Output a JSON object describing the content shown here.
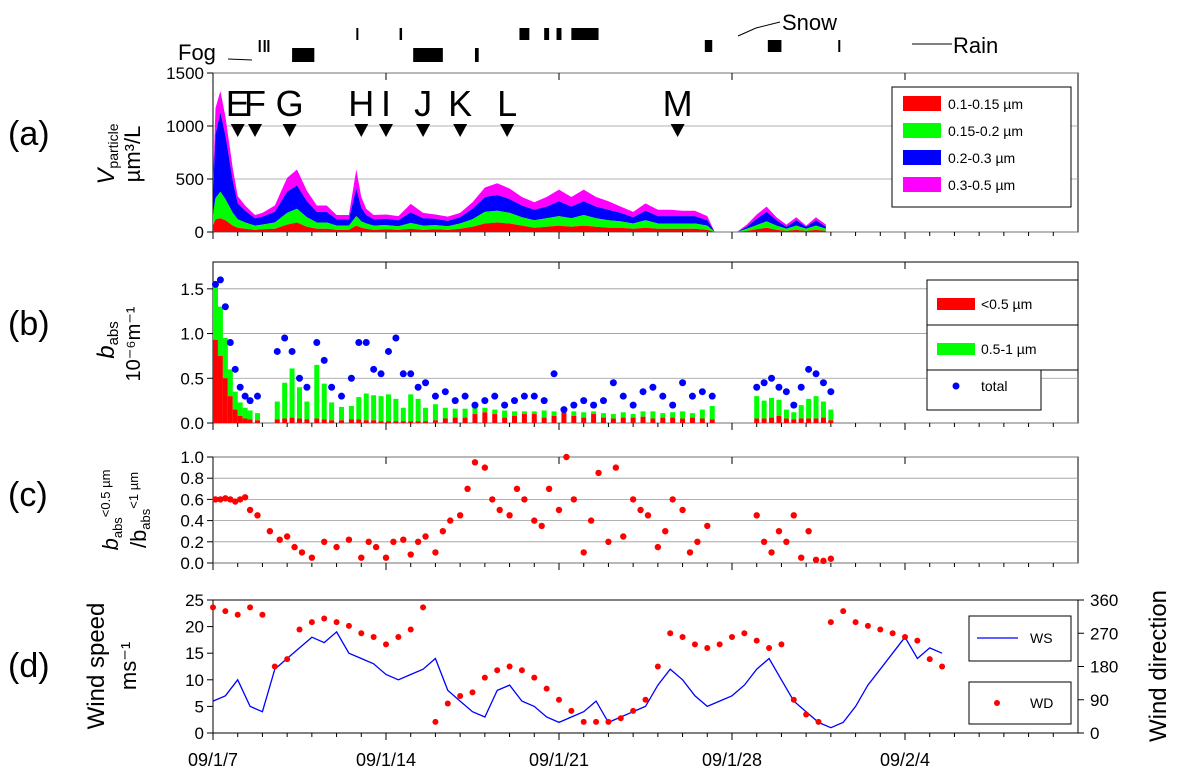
{
  "weather": {
    "fog": "Fog",
    "snow": "Snow",
    "rain": "Rain",
    "events": [
      {
        "type": "fog",
        "start": 8.85,
        "end": 8.9
      },
      {
        "type": "fog",
        "start": 9.05,
        "end": 9.1
      },
      {
        "type": "fog",
        "start": 9.2,
        "end": 9.25
      },
      {
        "type": "fog",
        "start": 10.2,
        "end": 11.1
      },
      {
        "type": "fog",
        "start": 12.8,
        "end": 12.85
      },
      {
        "type": "fog",
        "start": 14.55,
        "end": 14.65
      },
      {
        "type": "fog",
        "start": 15.1,
        "end": 16.3
      },
      {
        "type": "fog",
        "start": 17.6,
        "end": 17.75
      },
      {
        "type": "fog",
        "start": 19.4,
        "end": 19.8
      },
      {
        "type": "fog",
        "start": 20.4,
        "end": 20.6
      },
      {
        "type": "fog",
        "start": 20.9,
        "end": 21.1
      },
      {
        "type": "fog",
        "start": 21.5,
        "end": 22.6
      },
      {
        "type": "snow",
        "start": 26.9,
        "end": 27.2
      },
      {
        "type": "snow",
        "start": 29.45,
        "end": 30.0
      },
      {
        "type": "rain",
        "start": 32.3,
        "end": 32.35
      }
    ]
  },
  "x_axis": {
    "ticks": [
      {
        "value": 7,
        "label": "09/1/7"
      },
      {
        "value": 14,
        "label": "09/1/14"
      },
      {
        "value": 21,
        "label": "09/1/21"
      },
      {
        "value": 28,
        "label": "09/1/28"
      },
      {
        "value": 35,
        "label": "09/2/4"
      }
    ]
  },
  "chart_data": [
    {
      "panel": "(a)",
      "type": "area",
      "ylabel": "Vparticle µm³/L",
      "ylim": [
        0,
        1500
      ],
      "yticks": [
        0,
        500,
        1000,
        1500
      ],
      "xlim": [
        7,
        42
      ],
      "events": [
        {
          "label": "E",
          "x": 8.0
        },
        {
          "label": "F",
          "x": 8.7
        },
        {
          "label": "G",
          "x": 10.1
        },
        {
          "label": "H",
          "x": 13.0
        },
        {
          "label": "I",
          "x": 14.0
        },
        {
          "label": "J",
          "x": 15.5
        },
        {
          "label": "K",
          "x": 17.0
        },
        {
          "label": "L",
          "x": 18.9
        },
        {
          "label": "M",
          "x": 25.8
        }
      ],
      "legend": [
        "0.1-0.15 µm",
        "0.15-0.2 µm",
        "0.2-0.3 µm",
        "0.3-0.5 µm"
      ],
      "colors": [
        "#ff0000",
        "#00ff00",
        "#0000ff",
        "#ff00ff"
      ],
      "x": [
        7.0,
        7.1,
        7.3,
        7.5,
        7.8,
        8.0,
        8.3,
        8.7,
        9.0,
        9.5,
        10.0,
        10.4,
        10.8,
        11.2,
        11.6,
        12.0,
        12.5,
        12.8,
        13.0,
        13.2,
        13.5,
        14.0,
        14.5,
        15.0,
        15.5,
        16.0,
        16.5,
        17.0,
        17.5,
        18.0,
        18.5,
        19.0,
        19.5,
        20.0,
        20.5,
        21.0,
        21.5,
        22.0,
        22.5,
        23.0,
        23.5,
        24.0,
        24.5,
        25.0,
        25.5,
        26.0,
        26.5,
        27.0,
        27.3,
        27.6,
        28.2,
        28.6,
        29.0,
        29.4,
        29.8,
        30.2,
        30.6,
        31.0,
        31.4,
        31.8
      ],
      "series": [
        {
          "name": "0.1-0.15 µm",
          "values": [
            60,
            120,
            130,
            110,
            60,
            40,
            30,
            20,
            25,
            30,
            70,
            90,
            50,
            30,
            30,
            20,
            20,
            60,
            40,
            30,
            20,
            25,
            20,
            30,
            20,
            25,
            20,
            30,
            50,
            80,
            90,
            80,
            60,
            40,
            50,
            60,
            50,
            60,
            50,
            40,
            40,
            30,
            40,
            30,
            30,
            30,
            30,
            20,
            0,
            0,
            0,
            10,
            25,
            40,
            20,
            10,
            20,
            10,
            20,
            10
          ]
        },
        {
          "name": "0.15-0.2 µm",
          "values": [
            100,
            200,
            250,
            200,
            120,
            80,
            60,
            40,
            45,
            60,
            110,
            130,
            90,
            60,
            60,
            40,
            40,
            90,
            60,
            50,
            40,
            40,
            35,
            55,
            40,
            40,
            35,
            50,
            70,
            110,
            110,
            100,
            80,
            70,
            80,
            90,
            80,
            100,
            80,
            70,
            60,
            50,
            70,
            50,
            50,
            50,
            50,
            40,
            0,
            0,
            0,
            20,
            40,
            60,
            40,
            20,
            40,
            20,
            40,
            20
          ]
        },
        {
          "name": "0.2-0.3 µm",
          "values": [
            200,
            600,
            750,
            600,
            300,
            150,
            110,
            70,
            75,
            100,
            200,
            220,
            150,
            100,
            100,
            60,
            60,
            260,
            130,
            80,
            60,
            60,
            55,
            100,
            70,
            60,
            50,
            60,
            100,
            140,
            150,
            130,
            110,
            100,
            110,
            140,
            110,
            130,
            110,
            100,
            80,
            60,
            90,
            70,
            70,
            70,
            70,
            50,
            0,
            0,
            0,
            20,
            60,
            90,
            50,
            20,
            50,
            20,
            50,
            20
          ]
        },
        {
          "name": "0.3-0.5 µm",
          "values": [
            100,
            250,
            200,
            180,
            120,
            70,
            50,
            30,
            35,
            60,
            130,
            150,
            100,
            60,
            60,
            40,
            40,
            180,
            100,
            60,
            40,
            40,
            40,
            80,
            50,
            40,
            40,
            40,
            60,
            90,
            110,
            100,
            80,
            70,
            90,
            110,
            90,
            110,
            90,
            80,
            60,
            50,
            70,
            60,
            60,
            50,
            50,
            40,
            0,
            0,
            0,
            20,
            40,
            50,
            30,
            20,
            30,
            10,
            30,
            20
          ]
        }
      ]
    },
    {
      "panel": "(b)",
      "type": "bar",
      "ylabel": "babs 10⁻⁶m⁻¹",
      "ylim": [
        0,
        1.8
      ],
      "yticks": [
        0.0,
        0.5,
        1.0,
        1.5
      ],
      "xlim": [
        7,
        42
      ],
      "legend": [
        "<0.5 µm",
        "0.5-1 µm",
        "total"
      ],
      "colors": [
        "#ff0000",
        "#00ff00",
        "#0000ff"
      ],
      "x": [
        7.1,
        7.3,
        7.5,
        7.7,
        7.9,
        8.1,
        8.3,
        8.5,
        8.8,
        9.6,
        9.9,
        10.2,
        10.5,
        10.8,
        11.2,
        11.5,
        11.8,
        12.2,
        12.6,
        12.9,
        13.2,
        13.5,
        13.8,
        14.1,
        14.4,
        14.7,
        15.0,
        15.3,
        15.6,
        16.0,
        16.4,
        16.8,
        17.2,
        17.6,
        18.0,
        18.4,
        18.8,
        19.2,
        19.6,
        20.0,
        20.4,
        20.8,
        21.2,
        21.6,
        22.0,
        22.4,
        22.8,
        23.2,
        23.6,
        24.0,
        24.4,
        24.8,
        25.2,
        25.6,
        26.0,
        26.4,
        26.8,
        27.2,
        29.0,
        29.3,
        29.6,
        29.9,
        30.2,
        30.5,
        30.8,
        31.1,
        31.4,
        31.7,
        32.0
      ],
      "series": [
        {
          "name": "<0.5 µm",
          "values": [
            0.93,
            0.75,
            0.5,
            0.3,
            0.15,
            0.08,
            0.05,
            0.04,
            0.03,
            0.04,
            0.05,
            0.06,
            0.05,
            0.04,
            0.05,
            0.04,
            0.03,
            0.03,
            0.04,
            0.04,
            0.03,
            0.03,
            0.02,
            0.02,
            0.02,
            0.02,
            0.02,
            0.02,
            0.02,
            0.03,
            0.05,
            0.06,
            0.06,
            0.1,
            0.12,
            0.1,
            0.06,
            0.08,
            0.1,
            0.1,
            0.06,
            0.08,
            0.12,
            0.08,
            0.06,
            0.1,
            0.06,
            0.05,
            0.06,
            0.06,
            0.07,
            0.05,
            0.06,
            0.06,
            0.05,
            0.06,
            0.05,
            0.04,
            0.05,
            0.05,
            0.06,
            0.08,
            0.05,
            0.04,
            0.05,
            0.05,
            0.05,
            0.06,
            0.03
          ]
        },
        {
          "name": "0.5-1 µm",
          "values": [
            0.6,
            0.55,
            0.45,
            0.3,
            0.2,
            0.15,
            0.12,
            0.1,
            0.08,
            0.2,
            0.4,
            0.55,
            0.35,
            0.2,
            0.6,
            0.4,
            0.2,
            0.15,
            0.15,
            0.25,
            0.3,
            0.28,
            0.28,
            0.3,
            0.25,
            0.15,
            0.3,
            0.25,
            0.15,
            0.18,
            0.12,
            0.1,
            0.1,
            0.1,
            0.05,
            0.05,
            0.08,
            0.05,
            0.03,
            0.03,
            0.08,
            0.05,
            0.03,
            0.05,
            0.06,
            0.03,
            0.05,
            0.05,
            0.06,
            0.04,
            0.06,
            0.08,
            0.05,
            0.06,
            0.08,
            0.05,
            0.1,
            0.15,
            0.25,
            0.2,
            0.22,
            0.18,
            0.1,
            0.08,
            0.15,
            0.22,
            0.25,
            0.18,
            0.12
          ]
        },
        {
          "name": "total",
          "values": [
            1.55,
            1.6,
            1.3,
            0.9,
            0.6,
            0.4,
            0.3,
            0.25,
            0.3,
            0.8,
            0.95,
            0.8,
            0.5,
            0.4,
            0.9,
            0.7,
            0.4,
            0.3,
            0.5,
            0.9,
            0.9,
            0.6,
            0.55,
            0.8,
            0.95,
            0.55,
            0.55,
            0.4,
            0.45,
            0.3,
            0.35,
            0.25,
            0.3,
            0.2,
            0.25,
            0.3,
            0.2,
            0.25,
            0.3,
            0.3,
            0.25,
            0.55,
            0.15,
            0.2,
            0.25,
            0.2,
            0.25,
            0.45,
            0.3,
            0.2,
            0.35,
            0.4,
            0.3,
            0.2,
            0.45,
            0.3,
            0.35,
            0.3,
            0.4,
            0.45,
            0.5,
            0.4,
            0.35,
            0.2,
            0.4,
            0.6,
            0.55,
            0.45,
            0.35
          ]
        }
      ]
    },
    {
      "panel": "(c)",
      "type": "scatter",
      "ylabel": "babs<0.5 µm /babs<1 µm",
      "ylim": [
        0,
        1.0
      ],
      "yticks": [
        0.0,
        0.2,
        0.4,
        0.6,
        0.8,
        1.0
      ],
      "xlim": [
        7,
        42
      ],
      "colors": [
        "#ff0000"
      ],
      "x": [
        7.1,
        7.3,
        7.5,
        7.7,
        7.9,
        8.1,
        8.3,
        8.5,
        8.8,
        9.3,
        9.7,
        10.0,
        10.3,
        10.6,
        11.0,
        11.5,
        12.0,
        12.5,
        13.0,
        13.3,
        13.6,
        14.0,
        14.3,
        14.7,
        15.0,
        15.3,
        15.6,
        16.0,
        16.3,
        16.6,
        17.0,
        17.3,
        17.6,
        18.0,
        18.3,
        18.6,
        19.0,
        19.3,
        19.6,
        20.0,
        20.3,
        20.6,
        21.0,
        21.3,
        21.6,
        22.0,
        22.3,
        22.6,
        23.0,
        23.3,
        23.6,
        24.0,
        24.3,
        24.6,
        25.0,
        25.3,
        25.6,
        26.0,
        26.3,
        26.6,
        27.0,
        29.0,
        29.3,
        29.6,
        29.9,
        30.2,
        30.5,
        30.8,
        31.1,
        31.4,
        31.7,
        32.0
      ],
      "series": [
        {
          "name": "",
          "values": [
            0.6,
            0.6,
            0.61,
            0.6,
            0.58,
            0.6,
            0.62,
            0.5,
            0.45,
            0.3,
            0.22,
            0.25,
            0.15,
            0.1,
            0.05,
            0.2,
            0.15,
            0.22,
            0.05,
            0.2,
            0.15,
            0.05,
            0.2,
            0.22,
            0.08,
            0.2,
            0.25,
            0.1,
            0.3,
            0.4,
            0.45,
            0.7,
            0.95,
            0.9,
            0.6,
            0.5,
            0.45,
            0.7,
            0.6,
            0.4,
            0.35,
            0.7,
            0.5,
            1.0,
            0.6,
            0.1,
            0.4,
            0.85,
            0.2,
            0.9,
            0.25,
            0.6,
            0.5,
            0.45,
            0.15,
            0.3,
            0.6,
            0.5,
            0.1,
            0.2,
            0.35,
            0.45,
            0.2,
            0.1,
            0.3,
            0.2,
            0.45,
            0.05,
            0.3,
            0.03,
            0.02,
            0.04
          ]
        }
      ]
    },
    {
      "panel": "(d)",
      "type": "line",
      "ylabel": "Wind speed ms⁻¹",
      "ylabel_right": "Wind direction",
      "ylim": [
        0,
        25
      ],
      "yticks": [
        0,
        5,
        10,
        15,
        20,
        25
      ],
      "y2lim": [
        0,
        360
      ],
      "y2ticks": [
        0,
        90,
        180,
        270,
        360
      ],
      "xlim": [
        7,
        42
      ],
      "legend": [
        "WS",
        "WD"
      ],
      "colors": [
        "#0000ff",
        "#ff0000"
      ],
      "x": [
        7.0,
        7.5,
        8.0,
        8.5,
        9.0,
        9.5,
        10.0,
        10.5,
        11.0,
        11.5,
        12.0,
        12.5,
        13.0,
        13.5,
        14.0,
        14.5,
        15.0,
        15.5,
        16.0,
        16.5,
        17.0,
        17.5,
        18.0,
        18.5,
        19.0,
        19.5,
        20.0,
        20.5,
        21.0,
        21.5,
        22.0,
        22.5,
        23.0,
        23.5,
        24.0,
        24.5,
        25.0,
        25.5,
        26.0,
        26.5,
        27.0,
        27.5,
        28.0,
        28.5,
        29.0,
        29.5,
        30.0,
        30.5,
        31.0,
        31.5,
        32.0,
        32.5,
        33.0,
        33.5,
        34.0,
        34.5,
        35.0,
        35.5,
        36.0,
        36.5
      ],
      "series": [
        {
          "name": "WS",
          "values": [
            6,
            7,
            10,
            5,
            4,
            12,
            14,
            16,
            18,
            17,
            19,
            15,
            14,
            13,
            11,
            10,
            11,
            12,
            14,
            8,
            6,
            4,
            3,
            8,
            9,
            6,
            5,
            3,
            2,
            3,
            4,
            6,
            2,
            3,
            4,
            5,
            9,
            12,
            10,
            7,
            5,
            6,
            7,
            9,
            12,
            14,
            10,
            6,
            4,
            2,
            1,
            2,
            5,
            9,
            12,
            15,
            18,
            14,
            16,
            15
          ]
        },
        {
          "name": "WD",
          "values": [
            340,
            330,
            320,
            340,
            320,
            180,
            200,
            280,
            300,
            310,
            300,
            290,
            270,
            260,
            240,
            260,
            280,
            340,
            30,
            80,
            100,
            110,
            150,
            170,
            180,
            170,
            150,
            120,
            90,
            60,
            30,
            30,
            30,
            40,
            60,
            90,
            180,
            270,
            260,
            240,
            230,
            240,
            260,
            270,
            250,
            230,
            240,
            90,
            50,
            30,
            300,
            330,
            300,
            290,
            280,
            270,
            260,
            250,
            200,
            180
          ]
        }
      ]
    }
  ]
}
